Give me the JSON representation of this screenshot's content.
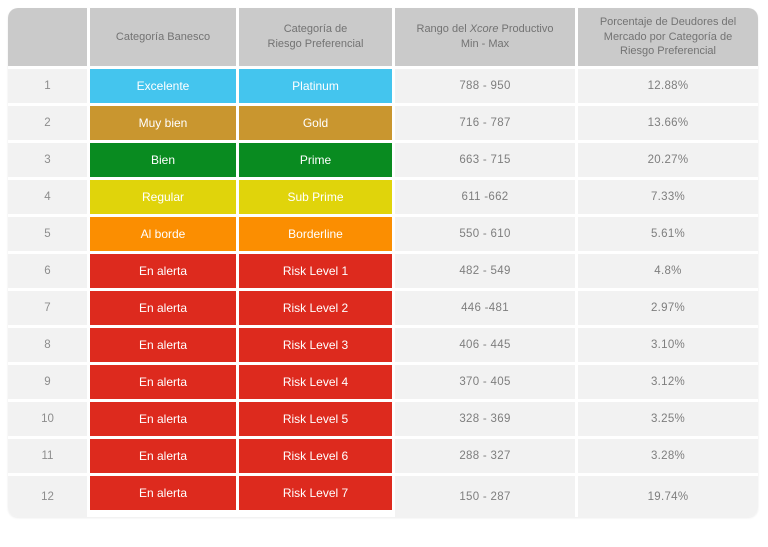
{
  "table": {
    "headers": {
      "num": "",
      "banesco": "Categoría Banesco",
      "riesgo_line1": "Categoría de",
      "riesgo_line2": "Riesgo Preferencial",
      "rango_pre": "Rango del ",
      "rango_italic": "Xcore",
      "rango_post": " Productivo",
      "rango_line2": "Min - Max",
      "pct": "Porcentaje de Deudores del Mercado por Categoría de Riesgo Preferencial"
    },
    "rows": [
      {
        "num": "1",
        "banesco": "Excelente",
        "riesgo": "Platinum",
        "color": "#44c5ee",
        "rango": "788 - 950",
        "pct": "12.88%"
      },
      {
        "num": "2",
        "banesco": "Muy bien",
        "riesgo": "Gold",
        "color": "#c9962f",
        "rango": "716 - 787",
        "pct": "13.66%"
      },
      {
        "num": "3",
        "banesco": "Bien",
        "riesgo": "Prime",
        "color": "#098b20",
        "rango": "663 - 715",
        "pct": "20.27%"
      },
      {
        "num": "4",
        "banesco": "Regular",
        "riesgo": "Sub Prime",
        "color": "#e0d40b",
        "rango": "611 -662",
        "pct": "7.33%"
      },
      {
        "num": "5",
        "banesco": "Al borde",
        "riesgo": "Borderline",
        "color": "#fb8e01",
        "rango": "550 - 610",
        "pct": "5.61%"
      },
      {
        "num": "6",
        "banesco": "En alerta",
        "riesgo": "Risk Level 1",
        "color": "#dd2a1e",
        "rango": "482 - 549",
        "pct": "4.8%"
      },
      {
        "num": "7",
        "banesco": "En alerta",
        "riesgo": "Risk Level 2",
        "color": "#dd2a1e",
        "rango": "446 -481",
        "pct": "2.97%"
      },
      {
        "num": "8",
        "banesco": "En alerta",
        "riesgo": "Risk Level 3",
        "color": "#dd2a1e",
        "rango": "406 - 445",
        "pct": "3.10%"
      },
      {
        "num": "9",
        "banesco": "En alerta",
        "riesgo": "Risk Level 4",
        "color": "#dd2a1e",
        "rango": "370 - 405",
        "pct": "3.12%"
      },
      {
        "num": "10",
        "banesco": "En alerta",
        "riesgo": "Risk Level 5",
        "color": "#dd2a1e",
        "rango": "328 - 369",
        "pct": "3.25%"
      },
      {
        "num": "11",
        "banesco": "En alerta",
        "riesgo": "Risk Level 6",
        "color": "#dd2a1e",
        "rango": "288 - 327",
        "pct": "3.28%"
      },
      {
        "num": "12",
        "banesco": "En alerta",
        "riesgo": "Risk Level 7",
        "color": "#dd2a1e",
        "rango": "150 - 287",
        "pct": "19.74%"
      }
    ]
  },
  "colors": {
    "header_bg": "#cacaca",
    "header_text": "#737373",
    "row_bg": "#f2f2f2",
    "cell_text": "#7e7e7e",
    "excellent_cyan": "#44c5ee",
    "gold": "#c9962f",
    "prime_green": "#098b20",
    "subprime_yellow": "#e0d40b",
    "borderline_orange": "#fb8e01",
    "alert_red": "#dd2a1e"
  },
  "chart_data": {
    "type": "table",
    "title": "Categorías de riesgo Banesco vs. Xcore Productivo",
    "columns": [
      "",
      "Categoría Banesco",
      "Categoría de Riesgo Preferencial",
      "Rango del Xcore Productivo Min - Max",
      "Porcentaje de Deudores del Mercado por Categoría de Riesgo Preferencial"
    ],
    "rows": [
      [
        "1",
        "Excelente",
        "Platinum",
        "788 - 950",
        "12.88%"
      ],
      [
        "2",
        "Muy bien",
        "Gold",
        "716 - 787",
        "13.66%"
      ],
      [
        "3",
        "Bien",
        "Prime",
        "663 - 715",
        "20.27%"
      ],
      [
        "4",
        "Regular",
        "Sub Prime",
        "611 -662",
        "7.33%"
      ],
      [
        "5",
        "Al borde",
        "Borderline",
        "550 - 610",
        "5.61%"
      ],
      [
        "6",
        "En alerta",
        "Risk Level 1",
        "482 - 549",
        "4.8%"
      ],
      [
        "7",
        "En alerta",
        "Risk Level 2",
        "446 -481",
        "2.97%"
      ],
      [
        "8",
        "En alerta",
        "Risk Level 3",
        "406 - 445",
        "3.10%"
      ],
      [
        "9",
        "En alerta",
        "Risk Level 4",
        "370 - 405",
        "3.12%"
      ],
      [
        "10",
        "En alerta",
        "Risk Level 5",
        "328 - 369",
        "3.25%"
      ],
      [
        "11",
        "En alerta",
        "Risk Level 6",
        "288 - 327",
        "3.28%"
      ],
      [
        "12",
        "En alerta",
        "Risk Level 7",
        "150 - 287",
        "19.74%"
      ]
    ],
    "row_colors": [
      "#44c5ee",
      "#c9962f",
      "#098b20",
      "#e0d40b",
      "#fb8e01",
      "#dd2a1e",
      "#dd2a1e",
      "#dd2a1e",
      "#dd2a1e",
      "#dd2a1e",
      "#dd2a1e",
      "#dd2a1e"
    ],
    "percent_values": [
      12.88,
      13.66,
      20.27,
      7.33,
      5.61,
      4.8,
      2.97,
      3.1,
      3.12,
      3.25,
      3.28,
      19.74
    ]
  }
}
